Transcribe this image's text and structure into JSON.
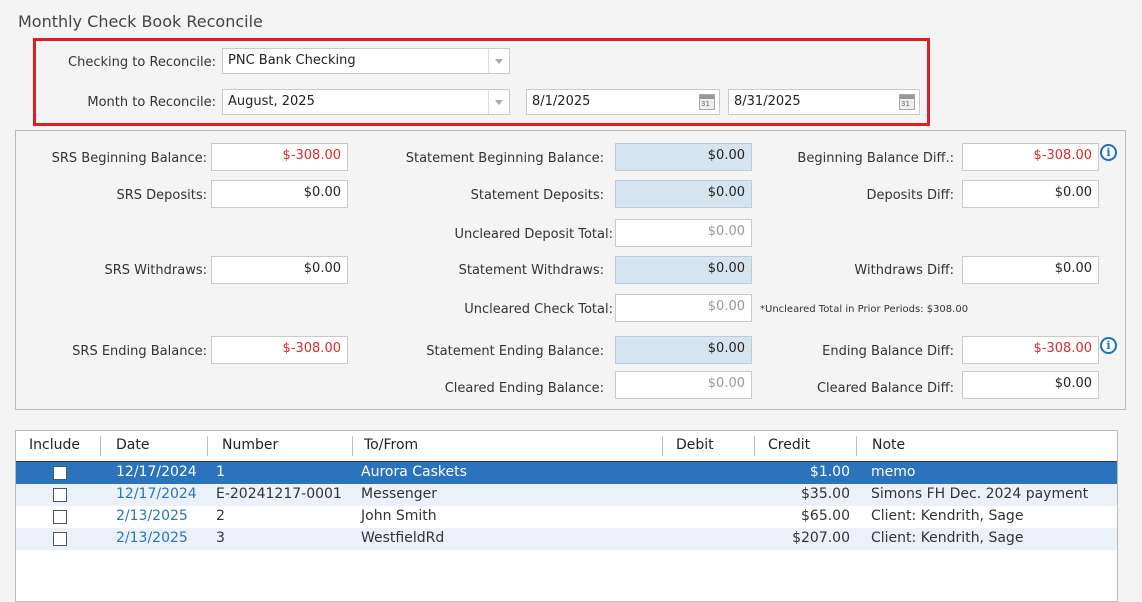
{
  "title": "Monthly Check Book Reconcile",
  "filters": {
    "checking_label": "Checking to Reconcile:",
    "checking_value": "PNC Bank Checking",
    "month_label": "Month to Reconcile:",
    "month_value": "August, 2025",
    "start_date": "8/1/2025",
    "end_date": "8/31/2025",
    "calendar_glyph": "31"
  },
  "summary": {
    "srs_beginning_label": "SRS Beginning Balance:",
    "srs_beginning_value": "$-308.00",
    "srs_deposits_label": "SRS Deposits:",
    "srs_deposits_value": "$0.00",
    "srs_withdraws_label": "SRS Withdraws:",
    "srs_withdraws_value": "$0.00",
    "srs_ending_label": "SRS Ending Balance:",
    "srs_ending_value": "$-308.00",
    "stmt_beginning_label": "Statement Beginning Balance:",
    "stmt_beginning_value": "$0.00",
    "stmt_deposits_label": "Statement Deposits:",
    "stmt_deposits_value": "$0.00",
    "uncleared_deposit_label": "Uncleared Deposit Total:",
    "uncleared_deposit_value": "$0.00",
    "stmt_withdraws_label": "Statement Withdraws:",
    "stmt_withdraws_value": "$0.00",
    "uncleared_check_label": "Uncleared Check Total:",
    "uncleared_check_value": "$0.00",
    "stmt_ending_label": "Statement Ending Balance:",
    "stmt_ending_value": "$0.00",
    "cleared_ending_label": "Cleared Ending Balance:",
    "cleared_ending_value": "$0.00",
    "beginning_diff_label": "Beginning Balance Diff.:",
    "beginning_diff_value": "$-308.00",
    "deposits_diff_label": "Deposits Diff:",
    "deposits_diff_value": "$0.00",
    "withdraws_diff_label": "Withdraws Diff:",
    "withdraws_diff_value": "$0.00",
    "prior_periods_note": "*Uncleared Total in Prior Periods: $308.00",
    "ending_diff_label": "Ending Balance Diff:",
    "ending_diff_value": "$-308.00",
    "cleared_diff_label": "Cleared Balance Diff:",
    "cleared_diff_value": "$0.00",
    "info_glyph": "i"
  },
  "table": {
    "columns": [
      "Include",
      "Date",
      "Number",
      "To/From",
      "Debit",
      "Credit",
      "Note"
    ],
    "rows": [
      {
        "date": "12/17/2024",
        "number": "1",
        "to_from": "Aurora Caskets",
        "debit": "",
        "credit": "$1.00",
        "note": "memo",
        "selected": true
      },
      {
        "date": "12/17/2024",
        "number": "E-20241217-0001",
        "to_from": "Messenger",
        "debit": "",
        "credit": "$35.00",
        "note": "Simons FH Dec. 2024 payment",
        "selected": false
      },
      {
        "date": "2/13/2025",
        "number": "2",
        "to_from": "John Smith",
        "debit": "",
        "credit": "$65.00",
        "note": "Client:  Kendrith, Sage",
        "selected": false
      },
      {
        "date": "2/13/2025",
        "number": "3",
        "to_from": "WestfieldRd",
        "debit": "",
        "credit": "$207.00",
        "note": "Client:  Kendrith, Sage",
        "selected": false
      }
    ]
  },
  "colors": {
    "negative": "#e0262d",
    "selected_row": "#2b74bd",
    "highlight_box": "#d92027"
  }
}
